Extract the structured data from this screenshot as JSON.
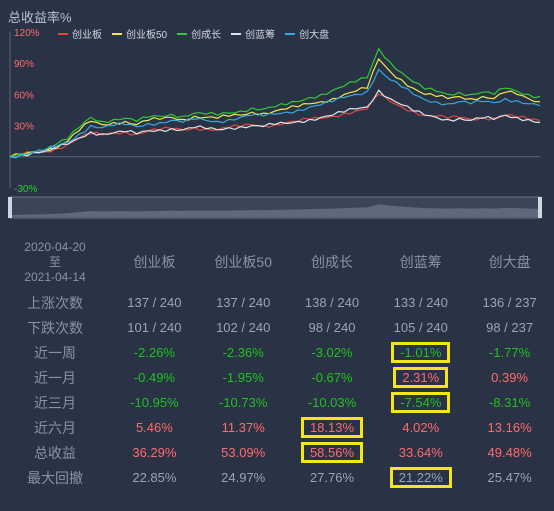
{
  "chart": {
    "title": "总收益率%",
    "y_ticks": [
      "120%",
      "90%",
      "60%",
      "30%",
      "-30%"
    ]
  },
  "chart_data": {
    "type": "line",
    "ylabel": "总收益率%",
    "ylim": [
      -30,
      120
    ],
    "series": [
      {
        "name": "创业板",
        "color": "#e0483c",
        "values": [
          0,
          2,
          4,
          5,
          8,
          12,
          18,
          22,
          21,
          23,
          24,
          22,
          25,
          26,
          27,
          26,
          28,
          27,
          26,
          28,
          29,
          31,
          30,
          31,
          33,
          34,
          36,
          37,
          39,
          42,
          44,
          46,
          60,
          53,
          48,
          44,
          40,
          39,
          37,
          38,
          36,
          38,
          37,
          40,
          38,
          36,
          35
        ]
      },
      {
        "name": "创业板50",
        "color": "#f0e64a",
        "values": [
          0,
          2,
          5,
          6,
          10,
          15,
          25,
          34,
          31,
          33,
          34,
          31,
          35,
          36,
          38,
          36,
          39,
          38,
          37,
          39,
          40,
          43,
          42,
          44,
          46,
          48,
          51,
          53,
          56,
          60,
          63,
          66,
          94,
          82,
          74,
          66,
          60,
          58,
          56,
          58,
          56,
          58,
          56,
          62,
          60,
          56,
          53
        ]
      },
      {
        "name": "创成长",
        "color": "#2fc837",
        "values": [
          0,
          3,
          5,
          7,
          12,
          17,
          28,
          38,
          34,
          36,
          37,
          34,
          38,
          39,
          41,
          39,
          42,
          41,
          40,
          42,
          44,
          47,
          46,
          48,
          50,
          53,
          57,
          60,
          64,
          68,
          72,
          76,
          104,
          91,
          81,
          72,
          65,
          63,
          60,
          62,
          60,
          62,
          60,
          66,
          63,
          60,
          58
        ]
      },
      {
        "name": "创蓝筹",
        "color": "#dfe3ea",
        "values": [
          0,
          2,
          4,
          5,
          8,
          12,
          18,
          24,
          22,
          23,
          24,
          22,
          25,
          26,
          27,
          26,
          28,
          27,
          26,
          28,
          29,
          30,
          29,
          31,
          32,
          34,
          36,
          38,
          40,
          43,
          46,
          48,
          64,
          56,
          50,
          44,
          40,
          38,
          36,
          37,
          35,
          37,
          36,
          40,
          38,
          36,
          33
        ]
      },
      {
        "name": "创大盘",
        "color": "#35a8e0",
        "values": [
          0,
          2,
          4,
          6,
          10,
          14,
          22,
          30,
          28,
          30,
          31,
          29,
          32,
          33,
          35,
          33,
          36,
          35,
          34,
          36,
          38,
          40,
          39,
          41,
          43,
          45,
          48,
          50,
          53,
          57,
          60,
          63,
          84,
          74,
          67,
          60,
          55,
          53,
          51,
          53,
          51,
          53,
          52,
          56,
          54,
          51,
          49
        ]
      }
    ]
  },
  "table": {
    "date_from": "2020-04-20",
    "date_to_sep": "至",
    "date_to": "2021-04-14",
    "columns": [
      "创业板",
      "创业板50",
      "创成长",
      "创蓝筹",
      "创大盘"
    ],
    "rows": [
      {
        "label": "上涨次数",
        "values": [
          "137 / 240",
          "137 / 240",
          "138 / 240",
          "133 / 240",
          "136 / 237"
        ],
        "styles": [
          "neutral",
          "neutral",
          "neutral",
          "neutral",
          "neutral"
        ],
        "hl": [
          false,
          false,
          false,
          false,
          false
        ]
      },
      {
        "label": "下跌次数",
        "values": [
          "101 / 240",
          "102 / 240",
          "98 / 240",
          "105 / 240",
          "98 / 237"
        ],
        "styles": [
          "neutral",
          "neutral",
          "neutral",
          "neutral",
          "neutral"
        ],
        "hl": [
          false,
          false,
          false,
          false,
          false
        ]
      },
      {
        "label": "近一周",
        "values": [
          "-2.26%",
          "-2.36%",
          "-3.02%",
          "-1.01%",
          "-1.77%"
        ],
        "styles": [
          "neg",
          "neg",
          "neg",
          "neg",
          "neg"
        ],
        "hl": [
          false,
          false,
          false,
          true,
          false
        ]
      },
      {
        "label": "近一月",
        "values": [
          "-0.49%",
          "-1.95%",
          "-0.67%",
          "2.31%",
          "0.39%"
        ],
        "styles": [
          "neg",
          "neg",
          "neg",
          "pos",
          "pos"
        ],
        "hl": [
          false,
          false,
          false,
          true,
          false
        ]
      },
      {
        "label": "近三月",
        "values": [
          "-10.95%",
          "-10.73%",
          "-10.03%",
          "-7.54%",
          "-8.31%"
        ],
        "styles": [
          "neg",
          "neg",
          "neg",
          "neg",
          "neg"
        ],
        "hl": [
          false,
          false,
          false,
          true,
          false
        ]
      },
      {
        "label": "近六月",
        "values": [
          "5.46%",
          "11.37%",
          "18.13%",
          "4.02%",
          "13.16%"
        ],
        "styles": [
          "pos",
          "pos",
          "pos",
          "pos",
          "pos"
        ],
        "hl": [
          false,
          false,
          true,
          false,
          false
        ]
      },
      {
        "label": "总收益",
        "values": [
          "36.29%",
          "53.09%",
          "58.56%",
          "33.64%",
          "49.48%"
        ],
        "styles": [
          "pos",
          "pos",
          "pos",
          "pos",
          "pos"
        ],
        "hl": [
          false,
          false,
          true,
          false,
          false
        ]
      },
      {
        "label": "最大回撤",
        "values": [
          "22.85%",
          "24.97%",
          "27.76%",
          "21.22%",
          "25.47%"
        ],
        "styles": [
          "neutral",
          "neutral",
          "neutral",
          "neutral",
          "neutral"
        ],
        "hl": [
          false,
          false,
          false,
          true,
          false
        ]
      }
    ]
  }
}
